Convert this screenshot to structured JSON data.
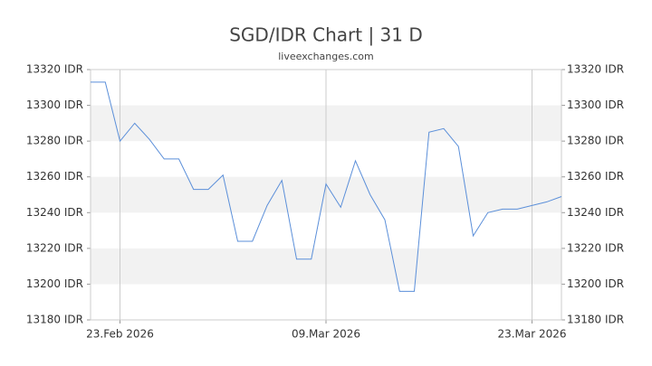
{
  "chart_data": {
    "type": "line",
    "title": "SGD/IDR Chart | 31 D",
    "subtitle": "liveexchanges.com",
    "x": [
      -2,
      -1,
      0,
      1,
      2,
      3,
      4,
      5,
      6,
      7,
      8,
      9,
      10,
      11,
      12,
      13,
      14,
      15,
      16,
      17,
      18,
      19,
      20,
      21,
      22,
      23,
      24,
      25,
      26,
      27,
      28,
      29,
      30
    ],
    "series": [
      {
        "name": "SGD/IDR",
        "color": "#5b8fd9",
        "values": [
          13313,
          13313,
          13280,
          13290,
          13281,
          13270,
          13270,
          13253,
          13253,
          13261,
          13224,
          13224,
          13244,
          13258,
          13214,
          13214,
          13256,
          13243,
          13269,
          13250,
          13236,
          13196,
          13196,
          13285,
          13287,
          13277,
          13227,
          13240,
          13242,
          13242,
          13244,
          13246,
          13249
        ]
      }
    ],
    "xlim": [
      -2,
      30
    ],
    "xticks": [
      {
        "value": 0,
        "label": "23.Feb 2026"
      },
      {
        "value": 14,
        "label": "09.Mar 2026"
      },
      {
        "value": 28,
        "label": "23.Mar 2026"
      }
    ],
    "ylim": [
      13180,
      13320
    ],
    "yticks": [
      {
        "value": 13180,
        "label": "13180 IDR"
      },
      {
        "value": 13200,
        "label": "13200 IDR"
      },
      {
        "value": 13220,
        "label": "13220 IDR"
      },
      {
        "value": 13240,
        "label": "13240 IDR"
      },
      {
        "value": 13260,
        "label": "13260 IDR"
      },
      {
        "value": 13280,
        "label": "13280 IDR"
      },
      {
        "value": 13300,
        "label": "13300 IDR"
      },
      {
        "value": 13320,
        "label": "13320 IDR"
      }
    ],
    "grid": true
  }
}
